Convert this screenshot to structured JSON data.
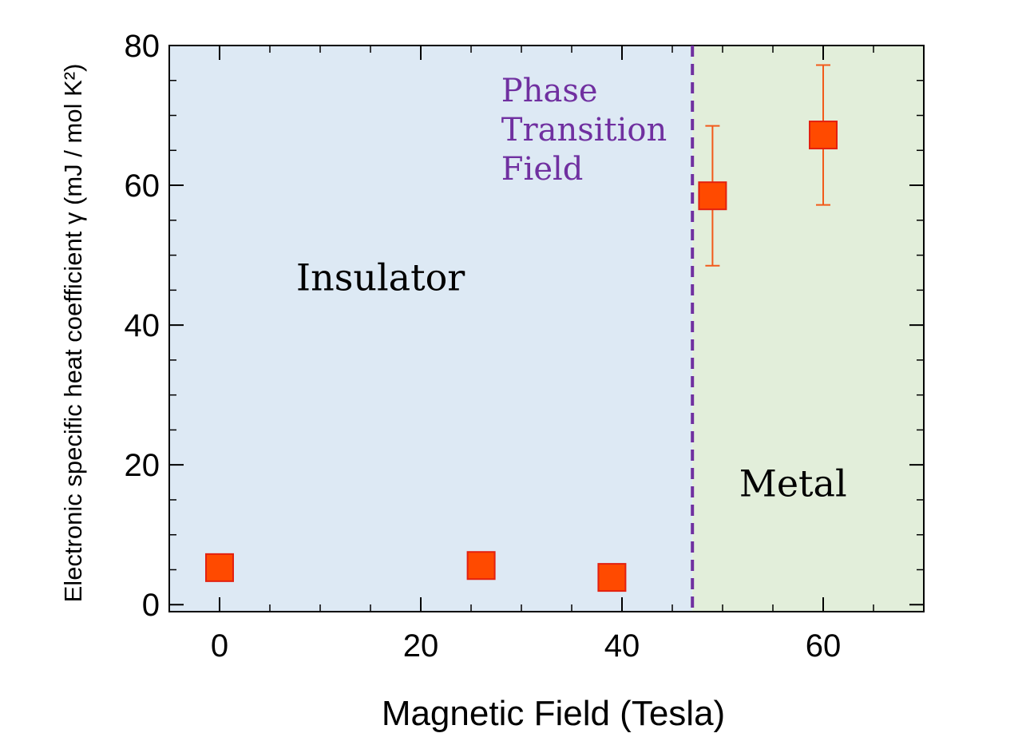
{
  "chart_data": {
    "type": "scatter",
    "xlabel": "Magnetic Field (Tesla)",
    "ylabel": "Electronic specific heat coefficient γ  (mJ / mol K²)",
    "xlim": [
      -5,
      70
    ],
    "ylim": [
      -1,
      80
    ],
    "x_ticks": [
      0,
      20,
      40,
      60
    ],
    "y_ticks": [
      0,
      20,
      40,
      60,
      80
    ],
    "x_minor_step": 5,
    "y_minor_step": 5,
    "grid": false,
    "points": [
      {
        "x": 0,
        "y": 5.3
      },
      {
        "x": 26,
        "y": 5.6
      },
      {
        "x": 39,
        "y": 3.9
      },
      {
        "x": 49,
        "y": 58.5,
        "err": 10
      },
      {
        "x": 60,
        "y": 67.2,
        "err": 10
      }
    ],
    "transition_x": 47,
    "regions": [
      {
        "label": "Insulator",
        "from": -5,
        "to": 47,
        "color": "#dde9f4",
        "label_x": 16,
        "label_y": 45
      },
      {
        "label": "Metal",
        "from": 47,
        "to": 70,
        "color": "#e2eeda",
        "label_x": 57,
        "label_y": 15.5
      }
    ],
    "annotation": {
      "lines": [
        "Phase",
        "Transition",
        "Field"
      ],
      "color": "#7030a0",
      "x": 28,
      "y": 72
    },
    "colors": {
      "marker_fill": "#ff4a00",
      "marker_edge": "#e3200f",
      "errorbar": "#f25a1a",
      "transition_line": "#7030a0"
    }
  }
}
